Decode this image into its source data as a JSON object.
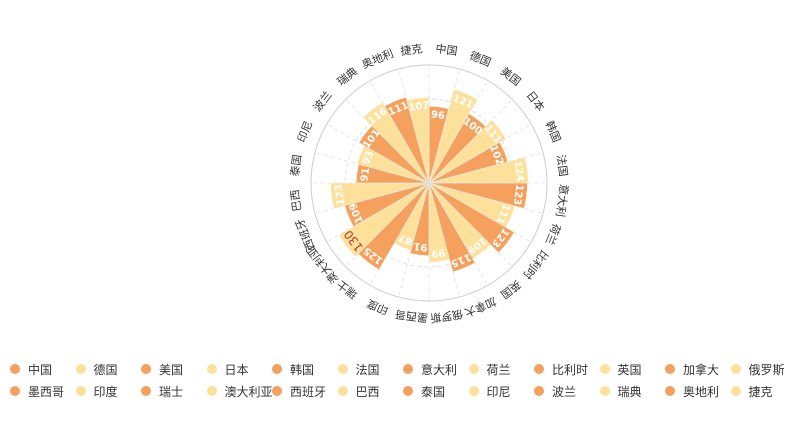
{
  "chart_data": {
    "type": "bar",
    "subtype": "polar-radial-bar",
    "title": "",
    "categories": [
      "中国",
      "德国",
      "美国",
      "日本",
      "韩国",
      "法国",
      "意大利",
      "荷兰",
      "比利时",
      "英国",
      "加拿大",
      "俄罗斯",
      "墨西哥",
      "印度",
      "瑞士",
      "澳大利亚",
      "西班牙",
      "巴西",
      "泰国",
      "印尼",
      "波兰",
      "瑞典",
      "奥地利",
      "捷克"
    ],
    "values": [
      96,
      121,
      100,
      111,
      102,
      124,
      123,
      111,
      123,
      109,
      115,
      99,
      91,
      87,
      125,
      130,
      109,
      123,
      91,
      93,
      101,
      116,
      111,
      107
    ],
    "highlight": {
      "category": "澳大利亚",
      "value": 130,
      "color": "#c23531"
    },
    "colors": {
      "odd": "#f5a05c",
      "even": "#fde19a",
      "axis": "#cccccc",
      "grid": "#e0e0e0",
      "label": "#333333",
      "value_label": "#ffffff"
    },
    "legend": {
      "position": "bottom",
      "rows": [
        [
          "中国",
          "德国",
          "美国",
          "日本",
          "韩国",
          "法国",
          "意大利",
          "荷兰",
          "比利时",
          "英国",
          "加拿大",
          "俄罗斯"
        ],
        [
          "墨西哥",
          "印度",
          "瑞士",
          "澳大利亚",
          "西班牙",
          "巴西",
          "泰国",
          "印尼",
          "波兰",
          "瑞典",
          "奥地利",
          "捷克"
        ]
      ]
    },
    "grid": true
  }
}
